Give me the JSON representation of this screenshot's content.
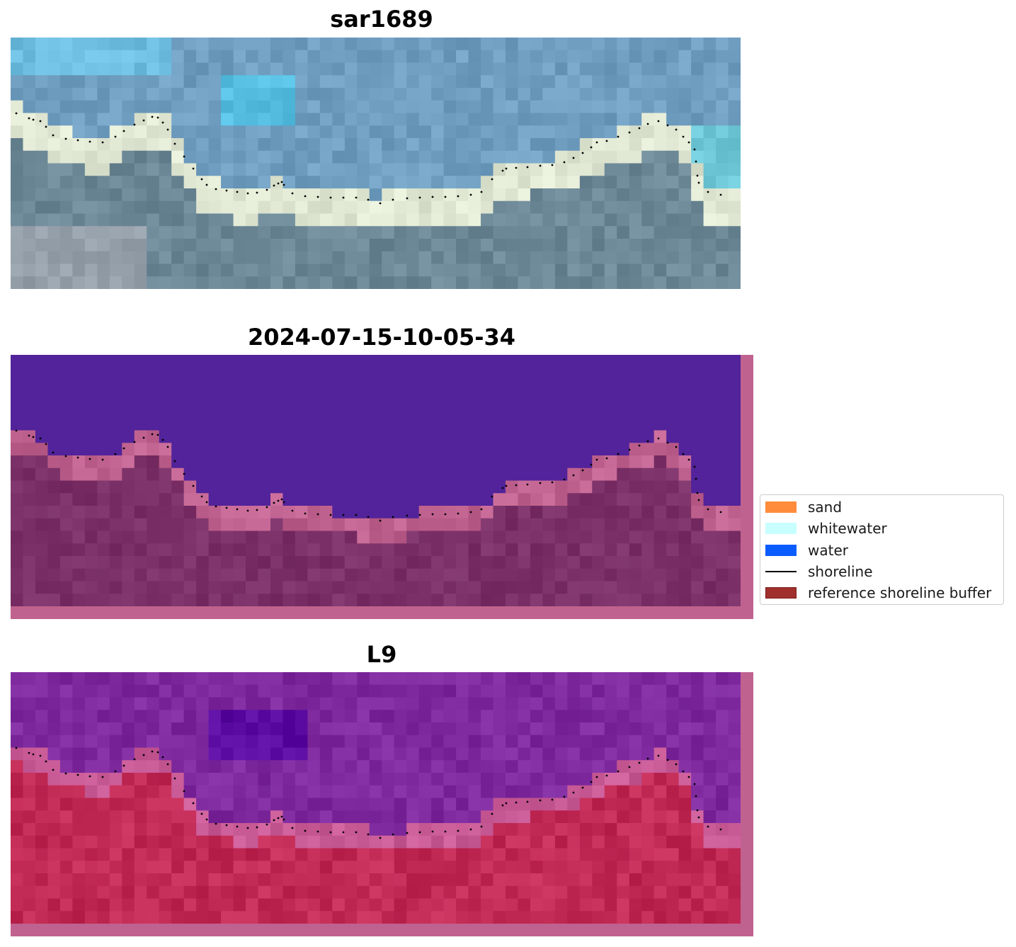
{
  "panels": [
    {
      "title": "sar1689",
      "kind": "rgb"
    },
    {
      "title": "2024-07-15-10-05-34",
      "kind": "classification"
    },
    {
      "title": "L9",
      "kind": "index"
    }
  ],
  "legend": {
    "items": [
      {
        "label": "sand",
        "color": "#ff8c3a",
        "type": "patch"
      },
      {
        "label": "whitewater",
        "color": "#c8ffff",
        "type": "patch"
      },
      {
        "label": "water",
        "color": "#0a5cff",
        "type": "patch"
      },
      {
        "label": "shoreline",
        "color": "#000000",
        "type": "line"
      },
      {
        "label": "reference shoreline buffer",
        "color": "#a0302d",
        "type": "patch",
        "edge": "#7a1a18"
      }
    ]
  },
  "colors": {
    "classification_water": "#52239a",
    "classification_land": "#7b3168",
    "classification_buffer": "#c0628f",
    "index_water": "#7e2a9e",
    "index_land": "#c12a55",
    "rgb_sea": "#6f9ec0",
    "rgb_land": "#6c8896",
    "rgb_sand": "#dfe6d2"
  }
}
